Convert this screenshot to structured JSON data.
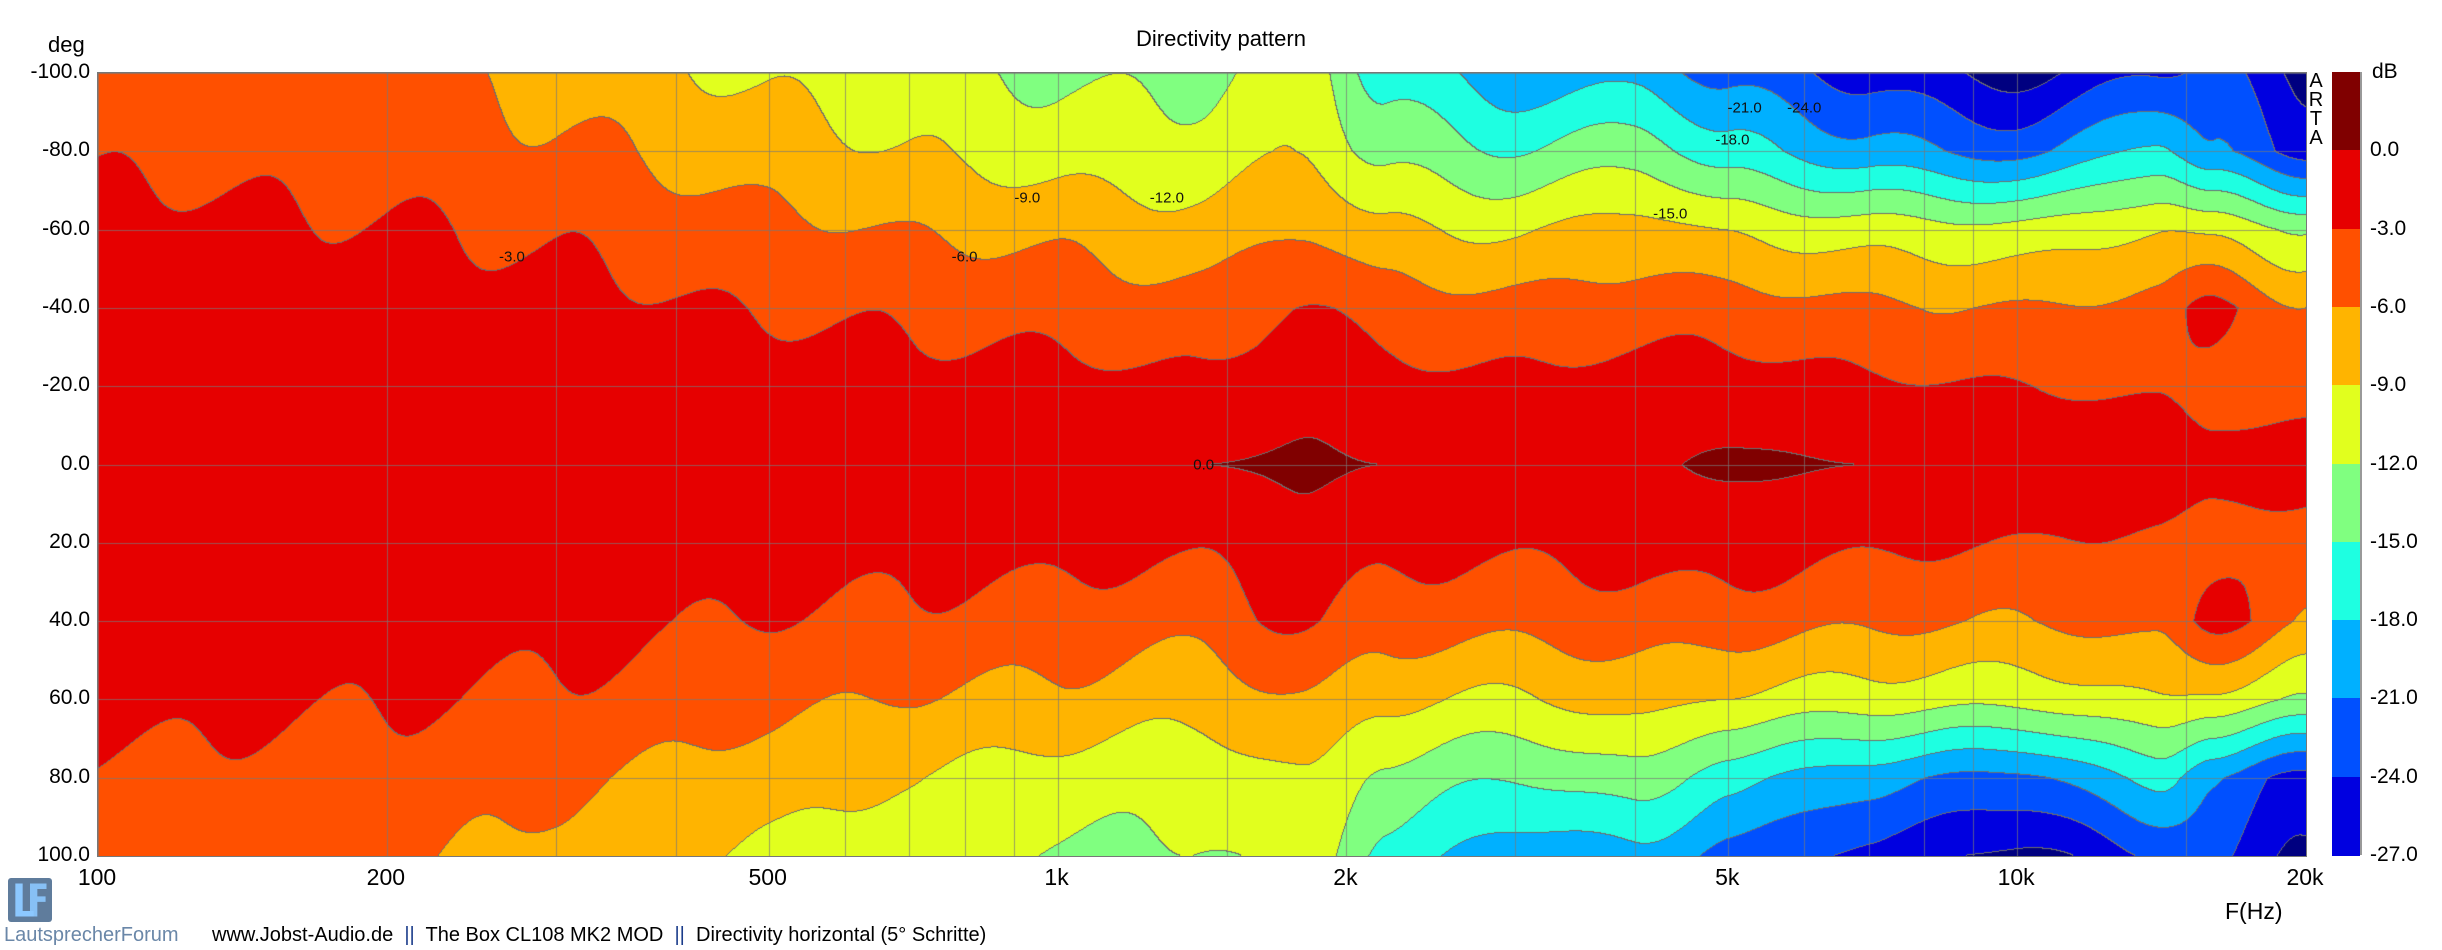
{
  "chart_data": {
    "type": "heatmap",
    "title": "Directivity pattern",
    "xlabel": "F(Hz)",
    "ylabel": "deg",
    "colorbar_label": "dB",
    "side_label": [
      "A",
      "R",
      "T",
      "A"
    ],
    "xscale": "log",
    "xlim": [
      100,
      20000
    ],
    "ylim": [
      -100,
      100
    ],
    "x_ticks": [
      {
        "v": 100,
        "label": "100"
      },
      {
        "v": 200,
        "label": "200"
      },
      {
        "v": 500,
        "label": "500"
      },
      {
        "v": 1000,
        "label": "1k"
      },
      {
        "v": 2000,
        "label": "2k"
      },
      {
        "v": 5000,
        "label": "5k"
      },
      {
        "v": 10000,
        "label": "10k"
      },
      {
        "v": 20000,
        "label": "20k"
      }
    ],
    "x_minor_grid": [
      300,
      400,
      600,
      700,
      800,
      900,
      3000,
      4000,
      6000,
      7000,
      8000,
      9000,
      1500,
      15000
    ],
    "y_ticks": [
      {
        "v": -100,
        "label": "-100.0"
      },
      {
        "v": -80,
        "label": "-80.0"
      },
      {
        "v": -60,
        "label": "-60.0"
      },
      {
        "v": -40,
        "label": "-40.0"
      },
      {
        "v": -20,
        "label": "-20.0"
      },
      {
        "v": 0,
        "label": "0.0"
      },
      {
        "v": 20,
        "label": "20.0"
      },
      {
        "v": 40,
        "label": "40.0"
      },
      {
        "v": 60,
        "label": "60.0"
      },
      {
        "v": 80,
        "label": "80.0"
      },
      {
        "v": 100,
        "label": "100.0"
      }
    ],
    "grid": true,
    "levels": [
      {
        "label": "0.0",
        "min": 0,
        "color": "#800000"
      },
      {
        "label": "-3.0",
        "min": -3,
        "color": "#e60000"
      },
      {
        "label": "-6.0",
        "min": -6,
        "color": "#ff5000"
      },
      {
        "label": "-9.0",
        "min": -9,
        "color": "#ffb400"
      },
      {
        "label": "-12.0",
        "min": -12,
        "color": "#e1ff1e"
      },
      {
        "label": "-15.0",
        "min": -15,
        "color": "#80ff80"
      },
      {
        "label": "-18.0",
        "min": -18,
        "color": "#1effe1"
      },
      {
        "label": "-21.0",
        "min": -21,
        "color": "#00b0ff"
      },
      {
        "label": "-24.0",
        "min": -24,
        "color": "#0050ff"
      },
      {
        "label": "-27.0",
        "min": -27,
        "color": "#0000e0"
      },
      {
        "label": "",
        "min": -999,
        "color": "#000080"
      }
    ],
    "angles": [
      0,
      20,
      40,
      60,
      80,
      100
    ],
    "series": [
      {
        "f": 100,
        "db": [
          0,
          -0.5,
          -1,
          -2,
          -3.5,
          -5
        ]
      },
      {
        "f": 200,
        "db": [
          0,
          -0.5,
          -1.5,
          -2.8,
          -4.2,
          -5.2
        ]
      },
      {
        "f": 300,
        "db": [
          0,
          -1,
          -2,
          -3.5,
          -5.5,
          -7
        ]
      },
      {
        "f": 500,
        "db": [
          0,
          -1.5,
          -3.2,
          -5.2,
          -7.5,
          -9.5
        ]
      },
      {
        "f": 700,
        "db": [
          0,
          -2,
          -3.6,
          -6.2,
          -9,
          -11
        ]
      },
      {
        "f": 1000,
        "db": [
          0,
          -2,
          -4.2,
          -6.8,
          -10.5,
          -12.5
        ]
      },
      {
        "f": 1400,
        "db": [
          0,
          -2.5,
          -5,
          -8,
          -11,
          -12.5
        ]
      },
      {
        "f": 1800,
        "db": [
          0.4,
          -1,
          -2.5,
          -6,
          -9,
          -10.5
        ]
      },
      {
        "f": 2200,
        "db": [
          0,
          -2,
          -4.5,
          -8.5,
          -13,
          -16
        ]
      },
      {
        "f": 3000,
        "db": [
          -0.5,
          -2.5,
          -5,
          -9.5,
          -15,
          -20
        ]
      },
      {
        "f": 4000,
        "db": [
          -0.5,
          -1.5,
          -4.5,
          -7.5,
          -13,
          -19
        ]
      },
      {
        "f": 5000,
        "db": [
          0.5,
          -1.5,
          -4.5,
          -9.5,
          -17,
          -22
        ]
      },
      {
        "f": 7000,
        "db": [
          0,
          -2.5,
          -5.5,
          -10.5,
          -20,
          -25
        ]
      },
      {
        "f": 10000,
        "db": [
          -0.5,
          -3,
          -6,
          -11,
          -22,
          -28
        ]
      },
      {
        "f": 14000,
        "db": [
          -1,
          -3.5,
          -5,
          -9,
          -17,
          -24
        ]
      },
      {
        "f": 16000,
        "db": [
          -2,
          -4,
          -2,
          -10,
          -21,
          -23
        ]
      },
      {
        "f": 20000,
        "db": [
          -2,
          -4,
          -6,
          -12,
          -25,
          -28
        ]
      }
    ],
    "annotations": [
      {
        "f": 270,
        "deg": -53,
        "label": "-3.0"
      },
      {
        "f": 800,
        "deg": -53,
        "label": "-6.0"
      },
      {
        "f": 930,
        "deg": -68,
        "label": "-9.0"
      },
      {
        "f": 1300,
        "deg": -68,
        "label": "-12.0"
      },
      {
        "f": 4350,
        "deg": -64,
        "label": "-15.0"
      },
      {
        "f": 5050,
        "deg": -83,
        "label": "-18.0"
      },
      {
        "f": 5200,
        "deg": -91,
        "label": "-21.0"
      },
      {
        "f": 6000,
        "deg": -91,
        "label": "-24.0"
      },
      {
        "f": 1420,
        "deg": 0,
        "label": "0.0"
      }
    ]
  },
  "footer": {
    "brand": "LautsprecherForum",
    "site": "www.Jobst-Audio.de",
    "sep": "||",
    "product": "The Box CL108 MK2 MOD",
    "description": "Directivity horizontal (5° Schritte)"
  }
}
